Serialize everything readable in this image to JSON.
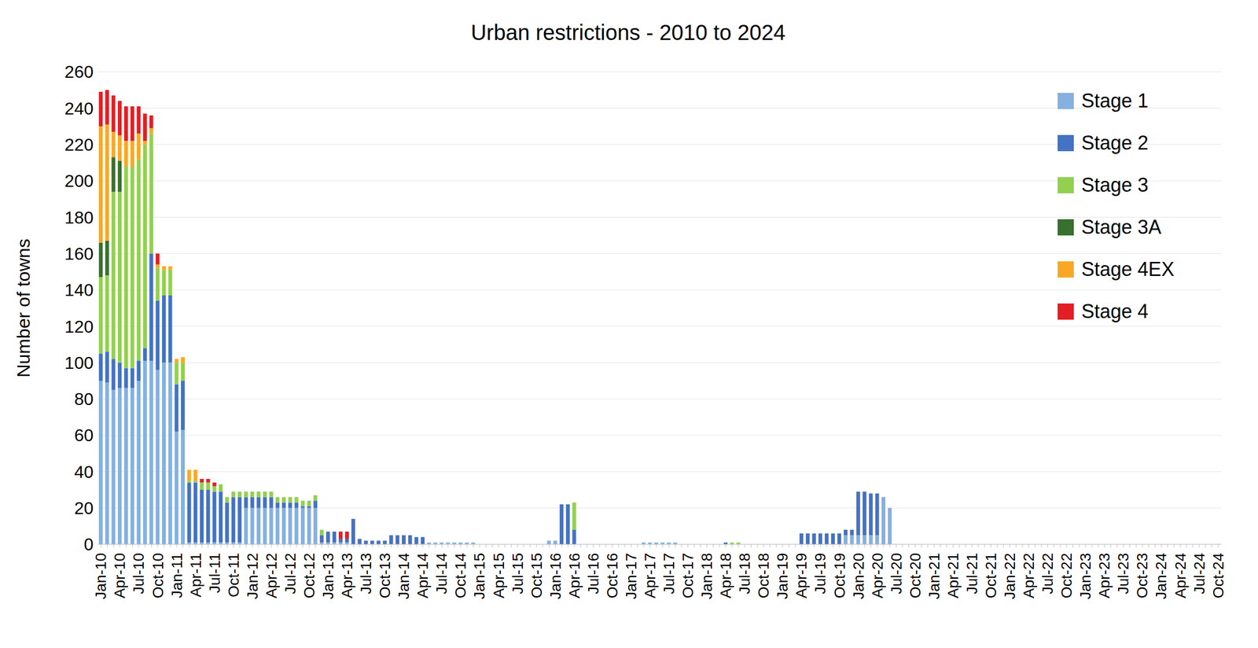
{
  "chart_data": {
    "type": "bar",
    "title": "Urban restrictions - 2010 to 2024",
    "ylabel": "Number of towns",
    "stacked": true,
    "grid": true,
    "legend": "upper right",
    "ylim": [
      0,
      260
    ],
    "yticks": [
      0,
      20,
      40,
      60,
      80,
      100,
      120,
      140,
      160,
      180,
      200,
      220,
      240,
      260
    ],
    "categories": [
      "Jan-10",
      null,
      null,
      "Apr-10",
      null,
      null,
      "Jul-10",
      null,
      null,
      "Oct-10",
      null,
      null,
      "Jan-11",
      null,
      null,
      "Apr-11",
      null,
      null,
      "Jul-11",
      null,
      null,
      "Oct-11",
      null,
      null,
      "Jan-12",
      null,
      null,
      "Apr-12",
      null,
      null,
      "Jul-12",
      null,
      null,
      "Oct-12",
      null,
      null,
      "Jan-13",
      null,
      null,
      "Apr-13",
      null,
      null,
      "Jul-13",
      null,
      null,
      "Oct-13",
      null,
      null,
      "Jan-14",
      null,
      null,
      "Apr-14",
      null,
      null,
      "Jul-14",
      null,
      null,
      "Oct-14",
      null,
      null,
      "Jan-15",
      null,
      null,
      "Apr-15",
      null,
      null,
      "Jul-15",
      null,
      null,
      "Oct-15",
      null,
      null,
      "Jan-16",
      null,
      null,
      "Apr-16",
      null,
      null,
      "Jul-16",
      null,
      null,
      "Oct-16",
      null,
      null,
      "Jan-17",
      null,
      null,
      "Apr-17",
      null,
      null,
      "Jul-17",
      null,
      null,
      "Oct-17",
      null,
      null,
      "Jan-18",
      null,
      null,
      "Apr-18",
      null,
      null,
      "Jul-18",
      null,
      null,
      "Oct-18",
      null,
      null,
      "Jan-19",
      null,
      null,
      "Apr-19",
      null,
      null,
      "Jul-19",
      null,
      null,
      "Oct-19",
      null,
      null,
      "Jan-20",
      null,
      null,
      "Apr-20",
      null,
      null,
      "Jul-20",
      null,
      null,
      "Oct-20",
      null,
      null,
      "Jan-21",
      null,
      null,
      "Apr-21",
      null,
      null,
      "Jul-21",
      null,
      null,
      "Oct-21",
      null,
      null,
      "Jan-22",
      null,
      null,
      "Apr-22",
      null,
      null,
      "Jul-22",
      null,
      null,
      "Oct-22",
      null,
      null,
      "Jan-23",
      null,
      null,
      "Apr-23",
      null,
      null,
      "Jul-23",
      null,
      null,
      "Oct-23",
      null,
      null,
      "Jan-24",
      null,
      null,
      "Apr-24",
      null,
      null,
      "Jul-24",
      null,
      null,
      "Oct-24"
    ],
    "series": [
      {
        "name": "Stage 1",
        "color": "#85B0E0",
        "values": [
          90,
          89,
          85,
          86,
          86,
          86,
          90,
          101,
          101,
          96,
          100,
          100,
          62,
          63,
          1,
          1,
          1,
          1,
          1,
          1,
          1,
          1,
          1,
          20,
          20,
          20,
          20,
          20,
          20,
          20,
          20,
          20,
          20,
          20,
          20,
          1,
          1,
          1,
          1,
          1,
          0,
          0,
          0,
          0,
          0,
          0,
          0,
          0,
          0,
          0,
          0,
          0,
          1,
          1,
          1,
          1,
          1,
          1,
          1,
          1,
          0,
          0,
          0,
          0,
          0,
          0,
          0,
          0,
          0,
          0,
          0,
          2,
          2,
          0,
          0,
          0,
          0,
          0,
          0,
          0,
          0,
          0,
          0,
          0,
          0,
          0,
          1,
          1,
          1,
          1,
          1,
          1,
          0,
          0,
          0,
          0,
          0,
          0,
          0,
          0,
          0,
          0,
          0,
          0,
          0,
          0,
          0,
          0,
          0,
          0,
          0,
          0,
          0,
          0,
          0,
          0,
          0,
          0,
          5,
          5,
          5,
          5,
          5,
          5,
          26,
          20,
          0,
          0,
          0,
          0,
          0,
          0,
          0,
          0,
          0,
          0,
          0,
          0,
          0,
          0,
          0,
          0,
          0,
          0,
          0,
          0,
          0,
          0,
          0,
          0,
          0,
          0,
          0,
          0,
          0,
          0,
          0,
          0,
          0,
          0,
          0,
          0,
          0,
          0,
          0,
          0,
          0,
          0,
          0,
          0,
          0,
          0,
          0,
          0,
          0,
          0,
          0,
          0
        ]
      },
      {
        "name": "Stage 2",
        "color": "#4472C4",
        "values": [
          15,
          17,
          17,
          14,
          11,
          11,
          11,
          7,
          59,
          38,
          37,
          37,
          26,
          27,
          33,
          33,
          29,
          29,
          28,
          28,
          22,
          25,
          25,
          6,
          6,
          6,
          6,
          6,
          3,
          3,
          3,
          3,
          1,
          1,
          4,
          4,
          6,
          6,
          2,
          2,
          14,
          3,
          2,
          2,
          2,
          2,
          5,
          5,
          5,
          5,
          4,
          4,
          0,
          0,
          0,
          0,
          0,
          0,
          0,
          0,
          0,
          0,
          0,
          0,
          0,
          0,
          0,
          0,
          0,
          0,
          0,
          0,
          0,
          22,
          22,
          8,
          0,
          0,
          0,
          0,
          0,
          0,
          0,
          0,
          0,
          0,
          0,
          0,
          0,
          0,
          0,
          0,
          0,
          0,
          0,
          0,
          0,
          0,
          0,
          1,
          0,
          0,
          0,
          0,
          0,
          0,
          0,
          0,
          0,
          0,
          0,
          6,
          6,
          6,
          6,
          6,
          6,
          6,
          3,
          3,
          24,
          24,
          23,
          23,
          0,
          0,
          0,
          0,
          0,
          0,
          0,
          0,
          0,
          0,
          0,
          0,
          0,
          0,
          0,
          0,
          0,
          0,
          0,
          0,
          0,
          0,
          0,
          0,
          0,
          0,
          0,
          0,
          0,
          0,
          0,
          0,
          0,
          0,
          0,
          0,
          0,
          0,
          0,
          0,
          0,
          0,
          0,
          0,
          0,
          0,
          0,
          0,
          0,
          0,
          0,
          0,
          0,
          0
        ]
      },
      {
        "name": "Stage 3",
        "color": "#92D050",
        "values": [
          42,
          42,
          92,
          94,
          111,
          111,
          111,
          112,
          66,
          18,
          14,
          14,
          12,
          10,
          1,
          1,
          4,
          4,
          3,
          4,
          3,
          3,
          3,
          3,
          3,
          3,
          3,
          3,
          3,
          3,
          3,
          3,
          3,
          3,
          3,
          3,
          0,
          0,
          0,
          0,
          0,
          0,
          0,
          0,
          0,
          0,
          0,
          0,
          0,
          0,
          0,
          0,
          0,
          0,
          0,
          0,
          0,
          0,
          0,
          0,
          0,
          0,
          0,
          0,
          0,
          0,
          0,
          0,
          0,
          0,
          0,
          0,
          0,
          0,
          0,
          15,
          0,
          0,
          0,
          0,
          0,
          0,
          0,
          0,
          0,
          0,
          0,
          0,
          0,
          0,
          0,
          0,
          0,
          0,
          0,
          0,
          0,
          0,
          0,
          0,
          1,
          1,
          0,
          0,
          0,
          0,
          0,
          0,
          0,
          0,
          0,
          0,
          0,
          0,
          0,
          0,
          0,
          0,
          0,
          0,
          0,
          0,
          0,
          0,
          0,
          0,
          0,
          0,
          0,
          0,
          0,
          0,
          0,
          0,
          0,
          0,
          0,
          0,
          0,
          0,
          0,
          0,
          0,
          0,
          0,
          0,
          0,
          0,
          0,
          0,
          0,
          0,
          0,
          0,
          0,
          0,
          0,
          0,
          0,
          0,
          0,
          0,
          0,
          0,
          0,
          0,
          0,
          0,
          0,
          0,
          0,
          0,
          0,
          0,
          0,
          0,
          0,
          0
        ]
      },
      {
        "name": "Stage 3A",
        "color": "#38702F",
        "values": [
          19,
          19,
          19,
          17,
          0,
          0,
          0,
          0,
          0,
          0,
          0,
          0,
          0,
          0,
          0,
          0,
          0,
          0,
          0,
          0,
          0,
          0,
          0,
          0,
          0,
          0,
          0,
          0,
          0,
          0,
          0,
          0,
          0,
          0,
          0,
          0,
          0,
          0,
          0,
          0,
          0,
          0,
          0,
          0,
          0,
          0,
          0,
          0,
          0,
          0,
          0,
          0,
          0,
          0,
          0,
          0,
          0,
          0,
          0,
          0,
          0,
          0,
          0,
          0,
          0,
          0,
          0,
          0,
          0,
          0,
          0,
          0,
          0,
          0,
          0,
          0,
          0,
          0,
          0,
          0,
          0,
          0,
          0,
          0,
          0,
          0,
          0,
          0,
          0,
          0,
          0,
          0,
          0,
          0,
          0,
          0,
          0,
          0,
          0,
          0,
          0,
          0,
          0,
          0,
          0,
          0,
          0,
          0,
          0,
          0,
          0,
          0,
          0,
          0,
          0,
          0,
          0,
          0,
          0,
          0,
          0,
          0,
          0,
          0,
          0,
          0,
          0,
          0,
          0,
          0,
          0,
          0,
          0,
          0,
          0,
          0,
          0,
          0,
          0,
          0,
          0,
          0,
          0,
          0,
          0,
          0,
          0,
          0,
          0,
          0,
          0,
          0,
          0,
          0,
          0,
          0,
          0,
          0,
          0,
          0,
          0,
          0,
          0,
          0,
          0,
          0,
          0,
          0,
          0,
          0,
          0,
          0,
          0,
          0,
          0,
          0,
          0,
          0
        ]
      },
      {
        "name": "Stage 4EX",
        "color": "#F9A825",
        "values": [
          64,
          64,
          14,
          14,
          14,
          14,
          14,
          2,
          3,
          2,
          2,
          2,
          2,
          3,
          6,
          6,
          0,
          0,
          0,
          0,
          0,
          0,
          0,
          0,
          0,
          0,
          0,
          0,
          0,
          0,
          0,
          0,
          0,
          0,
          0,
          0,
          0,
          0,
          0,
          0,
          0,
          0,
          0,
          0,
          0,
          0,
          0,
          0,
          0,
          0,
          0,
          0,
          0,
          0,
          0,
          0,
          0,
          0,
          0,
          0,
          0,
          0,
          0,
          0,
          0,
          0,
          0,
          0,
          0,
          0,
          0,
          0,
          0,
          0,
          0,
          0,
          0,
          0,
          0,
          0,
          0,
          0,
          0,
          0,
          0,
          0,
          0,
          0,
          0,
          0,
          0,
          0,
          0,
          0,
          0,
          0,
          0,
          0,
          0,
          0,
          0,
          0,
          0,
          0,
          0,
          0,
          0,
          0,
          0,
          0,
          0,
          0,
          0,
          0,
          0,
          0,
          0,
          0,
          0,
          0,
          0,
          0,
          0,
          0,
          0,
          0,
          0,
          0,
          0,
          0,
          0,
          0,
          0,
          0,
          0,
          0,
          0,
          0,
          0,
          0,
          0,
          0,
          0,
          0,
          0,
          0,
          0,
          0,
          0,
          0,
          0,
          0,
          0,
          0,
          0,
          0,
          0,
          0,
          0,
          0,
          0,
          0,
          0,
          0,
          0,
          0,
          0,
          0,
          0,
          0,
          0,
          0,
          0,
          0,
          0,
          0,
          0,
          0
        ]
      },
      {
        "name": "Stage 4",
        "color": "#E31E24",
        "values": [
          19,
          19,
          20,
          19,
          19,
          19,
          15,
          15,
          7,
          6,
          0,
          0,
          0,
          0,
          0,
          0,
          2,
          2,
          2,
          0,
          0,
          0,
          0,
          0,
          0,
          0,
          0,
          0,
          0,
          0,
          0,
          0,
          0,
          0,
          0,
          0,
          0,
          0,
          4,
          4,
          0,
          0,
          0,
          0,
          0,
          0,
          0,
          0,
          0,
          0,
          0,
          0,
          0,
          0,
          0,
          0,
          0,
          0,
          0,
          0,
          0,
          0,
          0,
          0,
          0,
          0,
          0,
          0,
          0,
          0,
          0,
          0,
          0,
          0,
          0,
          0,
          0,
          0,
          0,
          0,
          0,
          0,
          0,
          0,
          0,
          0,
          0,
          0,
          0,
          0,
          0,
          0,
          0,
          0,
          0,
          0,
          0,
          0,
          0,
          0,
          0,
          0,
          0,
          0,
          0,
          0,
          0,
          0,
          0,
          0,
          0,
          0,
          0,
          0,
          0,
          0,
          0,
          0,
          0,
          0,
          0,
          0,
          0,
          0,
          0,
          0,
          0,
          0,
          0,
          0,
          0,
          0,
          0,
          0,
          0,
          0,
          0,
          0,
          0,
          0,
          0,
          0,
          0,
          0,
          0,
          0,
          0,
          0,
          0,
          0,
          0,
          0,
          0,
          0,
          0,
          0,
          0,
          0,
          0,
          0,
          0,
          0,
          0,
          0,
          0,
          0,
          0,
          0,
          0,
          0,
          0,
          0,
          0,
          0,
          0,
          0,
          0,
          0
        ]
      }
    ]
  }
}
